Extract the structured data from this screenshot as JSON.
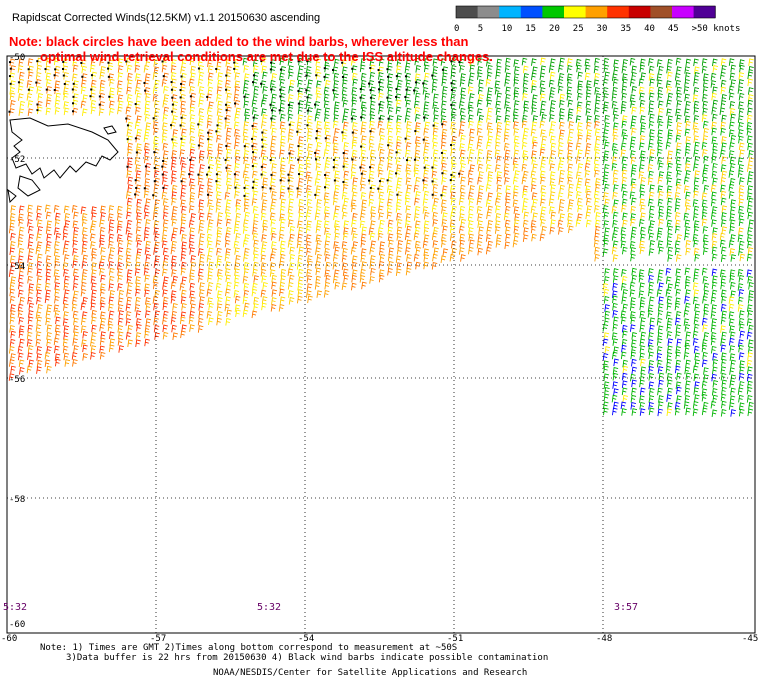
{
  "title": "Rapidscat Corrected Winds(12.5KM) v1.1 20150630 ascending",
  "note": {
    "line1": "Note: black circles have been added to the wind barbs, wherever less than",
    "line2": "optimal wind retrieval conditions are met due to the ISS altitude changes."
  },
  "legend": {
    "ticks": [
      "0",
      "5",
      "10",
      "15",
      "20",
      "25",
      "30",
      "35",
      "40",
      "45",
      ">50 knots"
    ],
    "colors": [
      "#4d4d4d",
      "#8c8c8c",
      "#00b4ff",
      "#0050ff",
      "#00c800",
      "#ffff00",
      "#ffa000",
      "#ff3200",
      "#c80000",
      "#a05028",
      "#c800ff",
      "#500096"
    ]
  },
  "map": {
    "lon_labels": [
      "-60",
      "-57",
      "-54",
      "-51",
      "-48",
      "-45"
    ],
    "lat_labels": [
      "-50",
      "-52",
      "-54",
      "-56",
      "-58",
      "-60"
    ],
    "pass_times": [
      "5:32",
      "5:32",
      "3:57"
    ]
  },
  "footer": {
    "line1": "Note: 1) Times are GMT 2)Times along bottom correspond to measurement at ~50S",
    "line2": "3)Data buffer is 22 hrs from 20150630 4) Black wind barbs indicate possible contamination",
    "credit": "NOAA/NESDIS/Center for Satellite Applications and Research"
  }
}
